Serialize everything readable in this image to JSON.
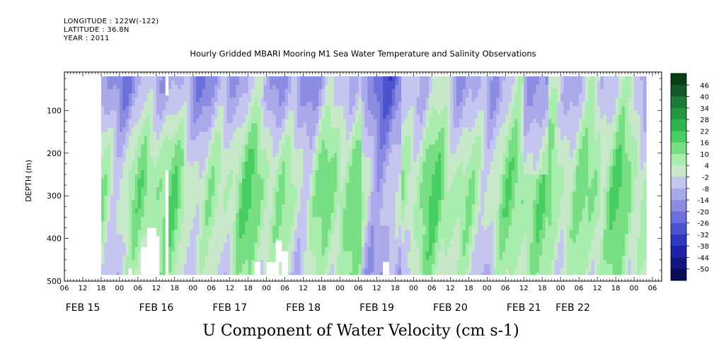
{
  "header": {
    "longitude": "LONGITUDE : 122W(-122)",
    "latitude": "LATITUDE : 36.8N",
    "year": "YEAR : 2011"
  },
  "chart_data": {
    "type": "heatmap",
    "title": "Hourly Gridded MBARI Mooring M1 Sea Water Temperature and Salinity Observations",
    "xlabel": "U Component of Water Velocity (cm s-1)",
    "ylabel": "DEPTH (m)",
    "x_start_hour": 6,
    "x_end_hour": 9,
    "x_hours_total": 195,
    "data_start_hour": 12,
    "data_end_hour": 190,
    "hour_ticks": [
      "06",
      "12",
      "18",
      "00",
      "06",
      "12",
      "18",
      "00",
      "06",
      "12",
      "18",
      "00",
      "06",
      "12",
      "18",
      "00",
      "06",
      "12",
      "18",
      "00",
      "06",
      "12",
      "18",
      "00",
      "06",
      "12",
      "18",
      "00",
      "06",
      "12",
      "18",
      "00",
      "06"
    ],
    "date_labels": [
      {
        "label": "FEB 15",
        "hour_index": 6
      },
      {
        "label": "FEB 16",
        "hour_index": 30
      },
      {
        "label": "FEB 17",
        "hour_index": 54
      },
      {
        "label": "FEB 18",
        "hour_index": 78
      },
      {
        "label": "FEB 19",
        "hour_index": 102
      },
      {
        "label": "FEB 20",
        "hour_index": 126
      },
      {
        "label": "FEB 21",
        "hour_index": 150
      },
      {
        "label": "FEB 22",
        "hour_index": 166
      }
    ],
    "ylim": [
      500,
      10
    ],
    "y_ticks": [
      100,
      200,
      300,
      400,
      500
    ],
    "y_ticklabels": [
      "100",
      "200",
      "300",
      "400",
      "500"
    ],
    "data_depth_range": [
      20,
      485
    ],
    "colorbar": {
      "levels": [
        46,
        40,
        34,
        28,
        22,
        16,
        10,
        4,
        -2,
        -8,
        -14,
        -20,
        -26,
        -32,
        -38,
        -44,
        -50
      ],
      "labels": [
        "46",
        "40",
        "34",
        "28",
        "22",
        "16",
        "10",
        "4",
        "-2",
        "-8",
        "-14",
        "-20",
        "-26",
        "-32",
        "-38",
        "-44",
        "-50"
      ],
      "colors": [
        "#0b3d14",
        "#11592a",
        "#1a7a36",
        "#22993f",
        "#2cb54a",
        "#47cd61",
        "#78de84",
        "#a8edae",
        "#c7e9c9",
        "#c5c6ef",
        "#aaa9ea",
        "#8c8ce2",
        "#6c70db",
        "#4d52cf",
        "#2f36bf",
        "#1d22a4",
        "#12167e",
        "#0a0c56"
      ]
    },
    "velocity_profile_description": "Blue (negative) near surface early in the period, green (positive) at depth; alternating bands over time",
    "gaps": [
      {
        "hour_start": 33,
        "hour_end": 34,
        "depth_top": 20,
        "depth_bottom": 65
      },
      {
        "hour_start": 33,
        "hour_end": 34,
        "depth_top": 240,
        "depth_bottom": 485
      },
      {
        "hour_start": 25,
        "hour_end": 27,
        "depth_top": 420,
        "depth_bottom": 485
      },
      {
        "hour_start": 27,
        "hour_end": 30,
        "depth_top": 375,
        "depth_bottom": 485
      },
      {
        "hour_start": 30,
        "hour_end": 31,
        "depth_top": 395,
        "depth_bottom": 485
      },
      {
        "hour_start": 21,
        "hour_end": 22,
        "depth_top": 470,
        "depth_bottom": 485
      },
      {
        "hour_start": 62,
        "hour_end": 64,
        "depth_top": 455,
        "depth_bottom": 485
      },
      {
        "hour_start": 66,
        "hour_end": 70,
        "depth_top": 455,
        "depth_bottom": 485
      },
      {
        "hour_start": 69,
        "hour_end": 71,
        "depth_top": 405,
        "depth_bottom": 455
      },
      {
        "hour_start": 71,
        "hour_end": 73,
        "depth_top": 430,
        "depth_bottom": 485
      },
      {
        "hour_start": 104,
        "hour_end": 106,
        "depth_top": 455,
        "depth_bottom": 485
      }
    ]
  }
}
